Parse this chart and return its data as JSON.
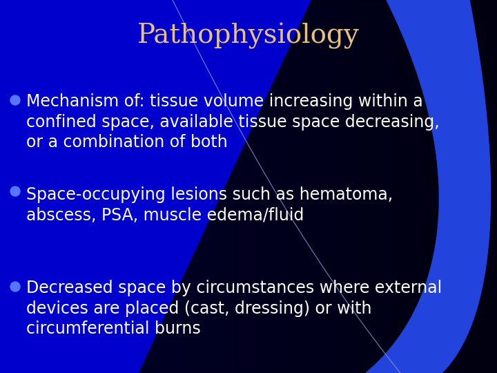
{
  "title": "Pathophysiology",
  "title_color": "#E8C080",
  "title_fontsize": 28,
  "bg_blue": "#0000CC",
  "bg_dark": "#000010",
  "text_color": "#FFFFFF",
  "bullet_dot_color": "#5577FF",
  "text_fontsize": 17,
  "bullets": [
    "Mechanism of: tissue volume increasing within a\nconfined space, available tissue space decreasing,\nor a combination of both",
    "Space-occupying lesions such as hematoma,\nabscess, PSA, muscle edema/fluid",
    "Decreased space by circumstances where external\ndevices are placed (cast, dressing) or with\ncircumferential burns"
  ],
  "figsize": [
    7.2,
    5.4
  ],
  "dpi": 100
}
